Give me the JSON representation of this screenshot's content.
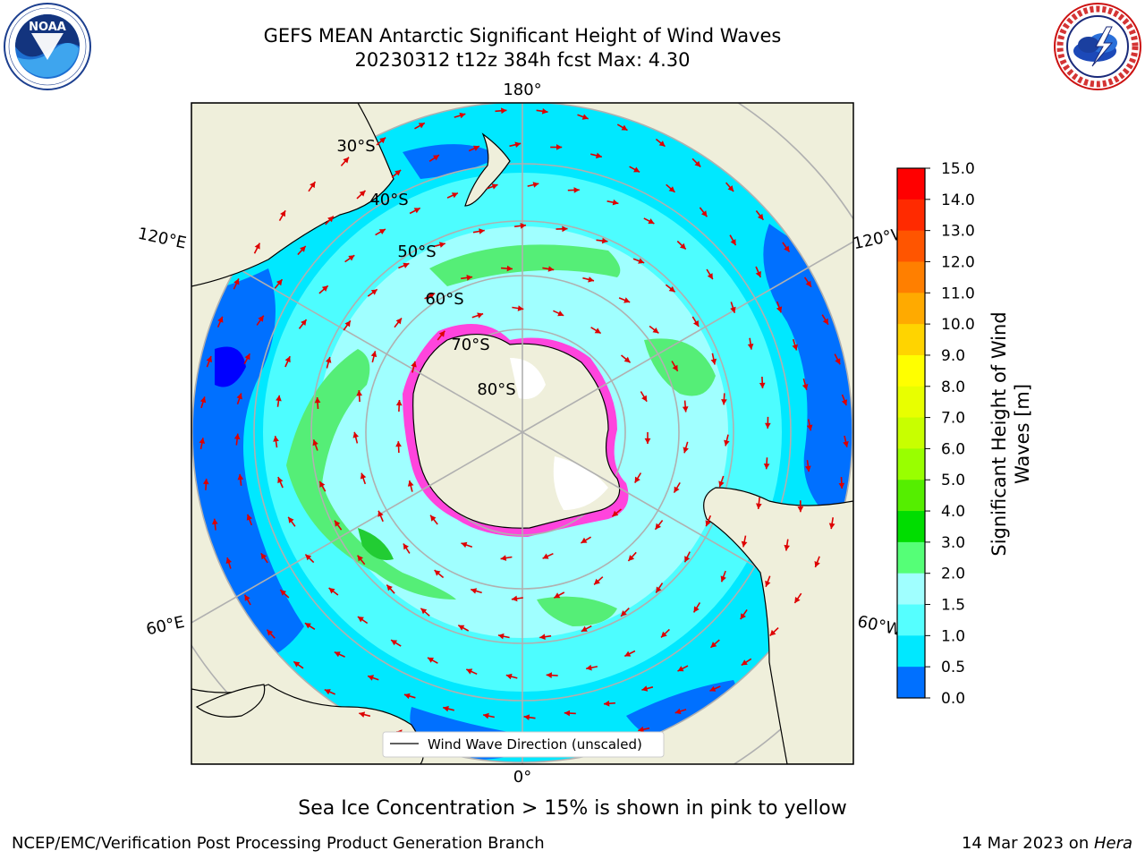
{
  "title": {
    "line1": "GEFS MEAN Antarctic Significant Height of Wind Waves",
    "line2": "20230312 t12z 384h fcst   Max: 4.30"
  },
  "logos": {
    "noaa": {
      "icon": "noaa-logo",
      "text": "NOAA",
      "ring_text": "NATIONAL OCEANIC AND ATMOSPHERIC ADMINISTRATION · U.S. DEPARTMENT OF COMMERCE"
    },
    "nws": {
      "icon": "nws-logo",
      "ring_text": "NATIONAL WEATHER SERVICE"
    }
  },
  "map": {
    "projection": "south-polar-stereographic",
    "longitude_labels": {
      "top": "180°",
      "bottom": "0°",
      "upper_left": "120°E",
      "upper_right": "120°W",
      "lower_left": "60°E",
      "lower_right": "60°W"
    },
    "latitude_labels": [
      "30°S",
      "40°S",
      "50°S",
      "60°S",
      "70°S",
      "80°S"
    ],
    "legend_label": "Wind Wave Direction (unscaled)",
    "colors": {
      "land": "#efefdb",
      "arrow": "#dd0000",
      "grid": "#b0b0b0",
      "sea_ice": "#ff33cc"
    }
  },
  "colorbar": {
    "label_line1": "Significant Height of Wind",
    "label_line2": "Waves [m]",
    "ticks": [
      "15.0",
      "14.0",
      "13.0",
      "12.0",
      "11.0",
      "10.0",
      "9.0",
      "8.0",
      "7.0",
      "6.0",
      "5.0",
      "4.0",
      "3.0",
      "2.0",
      "1.5",
      "1.0",
      "0.5",
      "0.0"
    ],
    "colors": [
      "#ff0000",
      "#ff2a00",
      "#ff5500",
      "#ff7f00",
      "#ffaa00",
      "#ffd400",
      "#ffff00",
      "#e8ff00",
      "#c8ff00",
      "#99ff00",
      "#55ee00",
      "#00dd00",
      "#55ff77",
      "#a0ffff",
      "#55ffff",
      "#00e8ff",
      "#0070ff",
      "#0000ff"
    ]
  },
  "captions": {
    "sea_ice": "Sea Ice Concentration > 15% is shown in pink to yellow",
    "footer_left": "NCEP/EMC/Verification Post Processing Product Generation Branch",
    "footer_date": "14 Mar 2023 on ",
    "footer_host": "Hera"
  }
}
